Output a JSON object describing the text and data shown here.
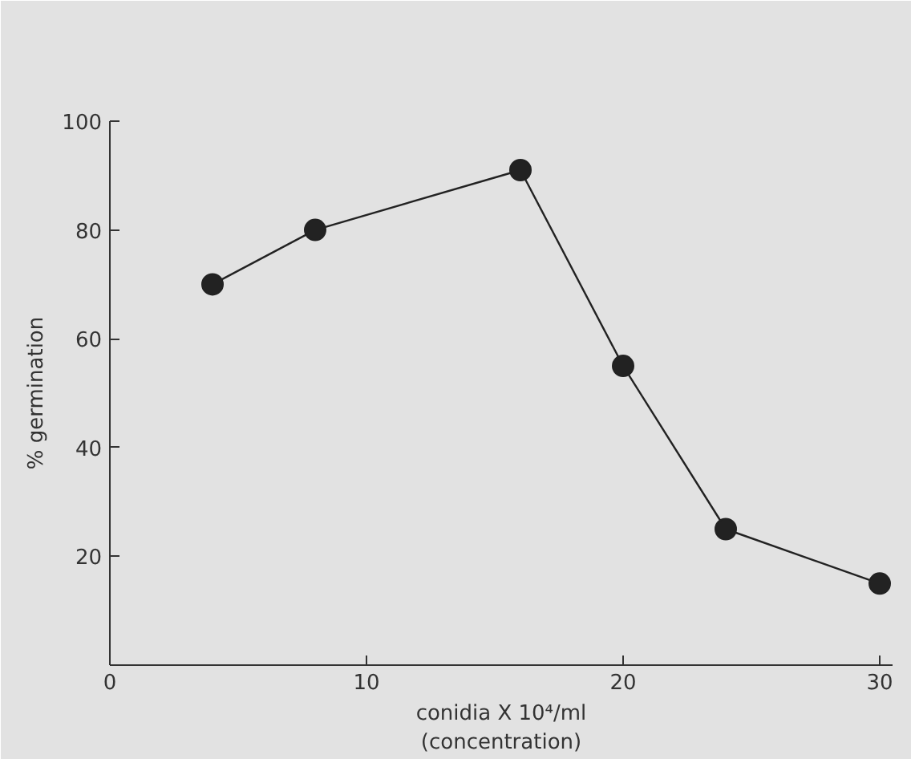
{
  "chart_data": {
    "type": "line",
    "xlabel": "conidia X 10⁴/ml\n(concentration)",
    "ylabel": "% germination",
    "x": [
      4,
      8,
      16,
      20,
      24,
      30
    ],
    "series": [
      {
        "color": "#222222",
        "values": [
          70,
          80,
          91,
          55,
          25,
          15
        ]
      }
    ],
    "marker": "circle",
    "line_style": "solid",
    "xlim": [
      0,
      30.5
    ],
    "ylim": [
      0,
      100
    ],
    "xticks": [
      0,
      10,
      20,
      30
    ],
    "yticks": [
      20,
      40,
      60,
      80,
      100
    ]
  }
}
